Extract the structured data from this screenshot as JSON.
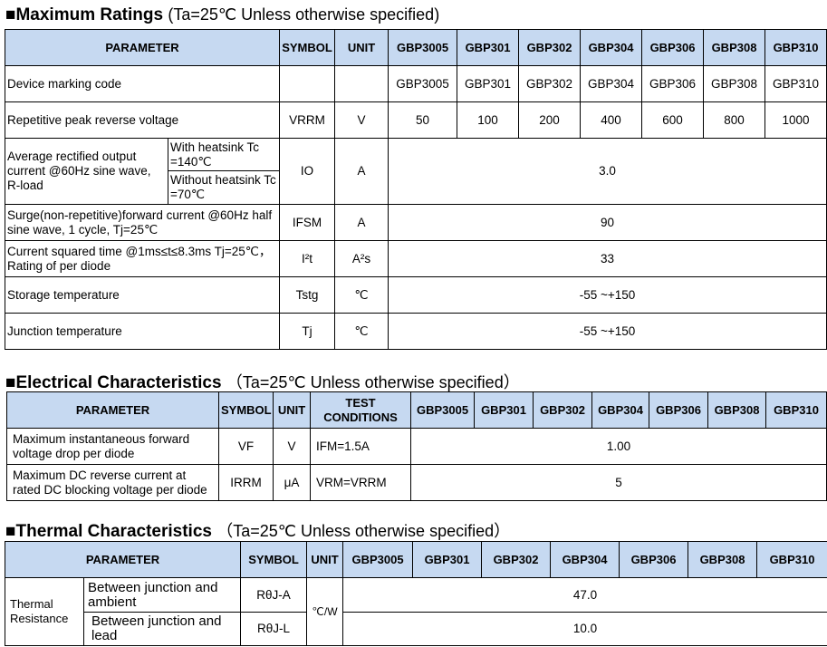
{
  "devices": [
    "GBP3005",
    "GBP301",
    "GBP302",
    "GBP304",
    "GBP306",
    "GBP308",
    "GBP310"
  ],
  "max": {
    "title": "■Maximum Ratings",
    "cond": "(Ta=25℃ Unless otherwise specified)",
    "headers": {
      "parameter": "PARAMETER",
      "symbol": "SYMBOL",
      "unit": "UNIT"
    },
    "marking": {
      "label": "Device marking code",
      "codes": [
        "GBP3005",
        "GBP301",
        "GBP302",
        "GBP304",
        "GBP306",
        "GBP308",
        "GBP310"
      ]
    },
    "vrrm": {
      "label": "Repetitive peak reverse voltage",
      "symbol": "VRRM",
      "unit": "V",
      "values": [
        "50",
        "100",
        "200",
        "400",
        "600",
        "800",
        "1000"
      ]
    },
    "io": {
      "label": "Average rectified output current @60Hz sine wave, R-load",
      "sub1": "With heatsink Tc =140℃",
      "sub2": "Without heatsink Tc =70℃",
      "symbol": "IO",
      "unit": "A",
      "value": "3.0"
    },
    "ifsm": {
      "label": "Surge(non-repetitive)forward current @60Hz half sine wave, 1 cycle, Tj=25℃",
      "symbol": "IFSM",
      "unit": "A",
      "value": "90"
    },
    "i2t": {
      "label": "Current squared time @1ms≤t≤8.3ms Tj=25℃，Rating of per diode",
      "symbol": "I²t",
      "unit": "A²s",
      "value": "33"
    },
    "tstg": {
      "label": "Storage temperature",
      "symbol": "Tstg",
      "unit": "℃",
      "value": "-55 ~+150"
    },
    "tj": {
      "label": "Junction temperature",
      "symbol": "Tj",
      "unit": "℃",
      "value": "-55 ~+150"
    }
  },
  "elec": {
    "title": "■Electrical Characteristics",
    "cond": "（Ta=25℃ Unless otherwise specified）",
    "headers": {
      "parameter": "PARAMETER",
      "symbol": "SYMBOL",
      "unit": "UNIT",
      "test": "TEST CONDITIONS"
    },
    "vf": {
      "label": "Maximum instantaneous forward voltage drop per diode",
      "symbol": "VF",
      "unit": "V",
      "test": "IFM=1.5A",
      "value": "1.00"
    },
    "irrm": {
      "label": "Maximum DC reverse current at rated DC blocking voltage per diode",
      "symbol": "IRRM",
      "unit": "μA",
      "test": "VRM=VRRM",
      "value": "5"
    }
  },
  "therm": {
    "title": "■Thermal Characteristics",
    "cond": "（Ta=25℃ Unless otherwise specified）",
    "headers": {
      "parameter": "PARAMETER",
      "symbol": "SYMBOL",
      "unit": "UNIT"
    },
    "group": "Thermal Resistance",
    "unit": "℃/W",
    "ja": {
      "label": "Between junction and ambient",
      "symbol": "RθJ-A",
      "value": "47.0"
    },
    "jl": {
      "label": "Between junction and lead",
      "symbol": "RθJ-L",
      "value": "10.0"
    }
  },
  "colors": {
    "header_bg": "#c6d9f1"
  }
}
